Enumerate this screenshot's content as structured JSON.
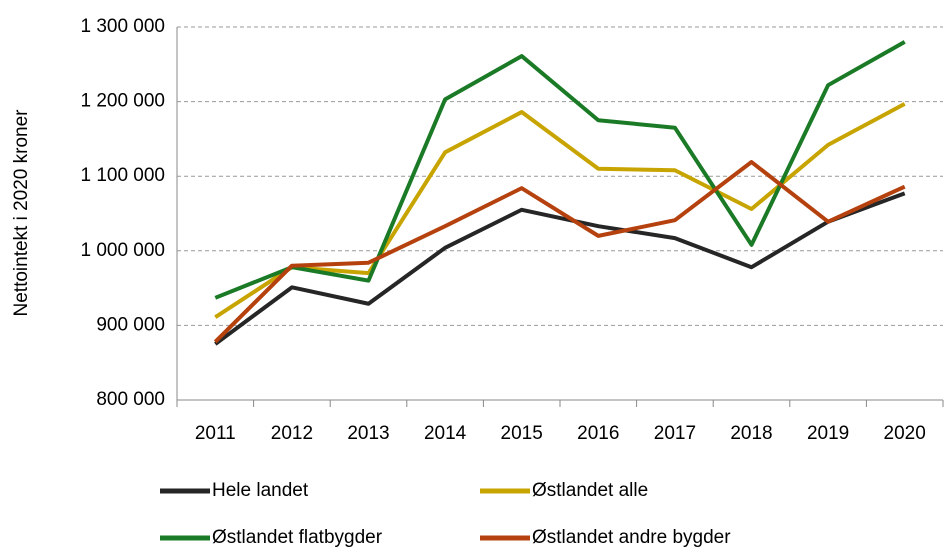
{
  "chart_data": {
    "type": "line",
    "y_axis_label": "Nettointekt i 2020 kroner",
    "categories": [
      "2011",
      "2012",
      "2013",
      "2014",
      "2015",
      "2016",
      "2017",
      "2018",
      "2019",
      "2020"
    ],
    "series": [
      {
        "name": "Hele landet",
        "color": "#262626",
        "values": [
          875000,
          951000,
          929000,
          1004000,
          1055000,
          1033000,
          1017000,
          978000,
          1039000,
          1077000
        ]
      },
      {
        "name": "Østlandet alle",
        "color": "#c8a400",
        "values": [
          911000,
          978000,
          970000,
          1132000,
          1186000,
          1110000,
          1108000,
          1056000,
          1142000,
          1197000
        ]
      },
      {
        "name": "Østlandet flatbygder",
        "color": "#1a7a26",
        "values": [
          937000,
          978000,
          960000,
          1203000,
          1261000,
          1175000,
          1165000,
          1008000,
          1222000,
          1280000
        ]
      },
      {
        "name": "Østlandet andre bygder",
        "color": "#b5420e",
        "values": [
          878000,
          980000,
          984000,
          1033000,
          1084000,
          1020000,
          1041000,
          1119000,
          1039000,
          1086000
        ]
      }
    ],
    "ylim": [
      800000,
      1300000
    ],
    "yticks": [
      {
        "value": 800000,
        "label": "800 000"
      },
      {
        "value": 900000,
        "label": "900 000"
      },
      {
        "value": 1000000,
        "label": "1 000 000"
      },
      {
        "value": 1100000,
        "label": "1 100 000"
      },
      {
        "value": 1200000,
        "label": "1 200 000"
      },
      {
        "value": 1300000,
        "label": "1 300 000"
      }
    ],
    "grid": true,
    "legend": "bottom"
  }
}
